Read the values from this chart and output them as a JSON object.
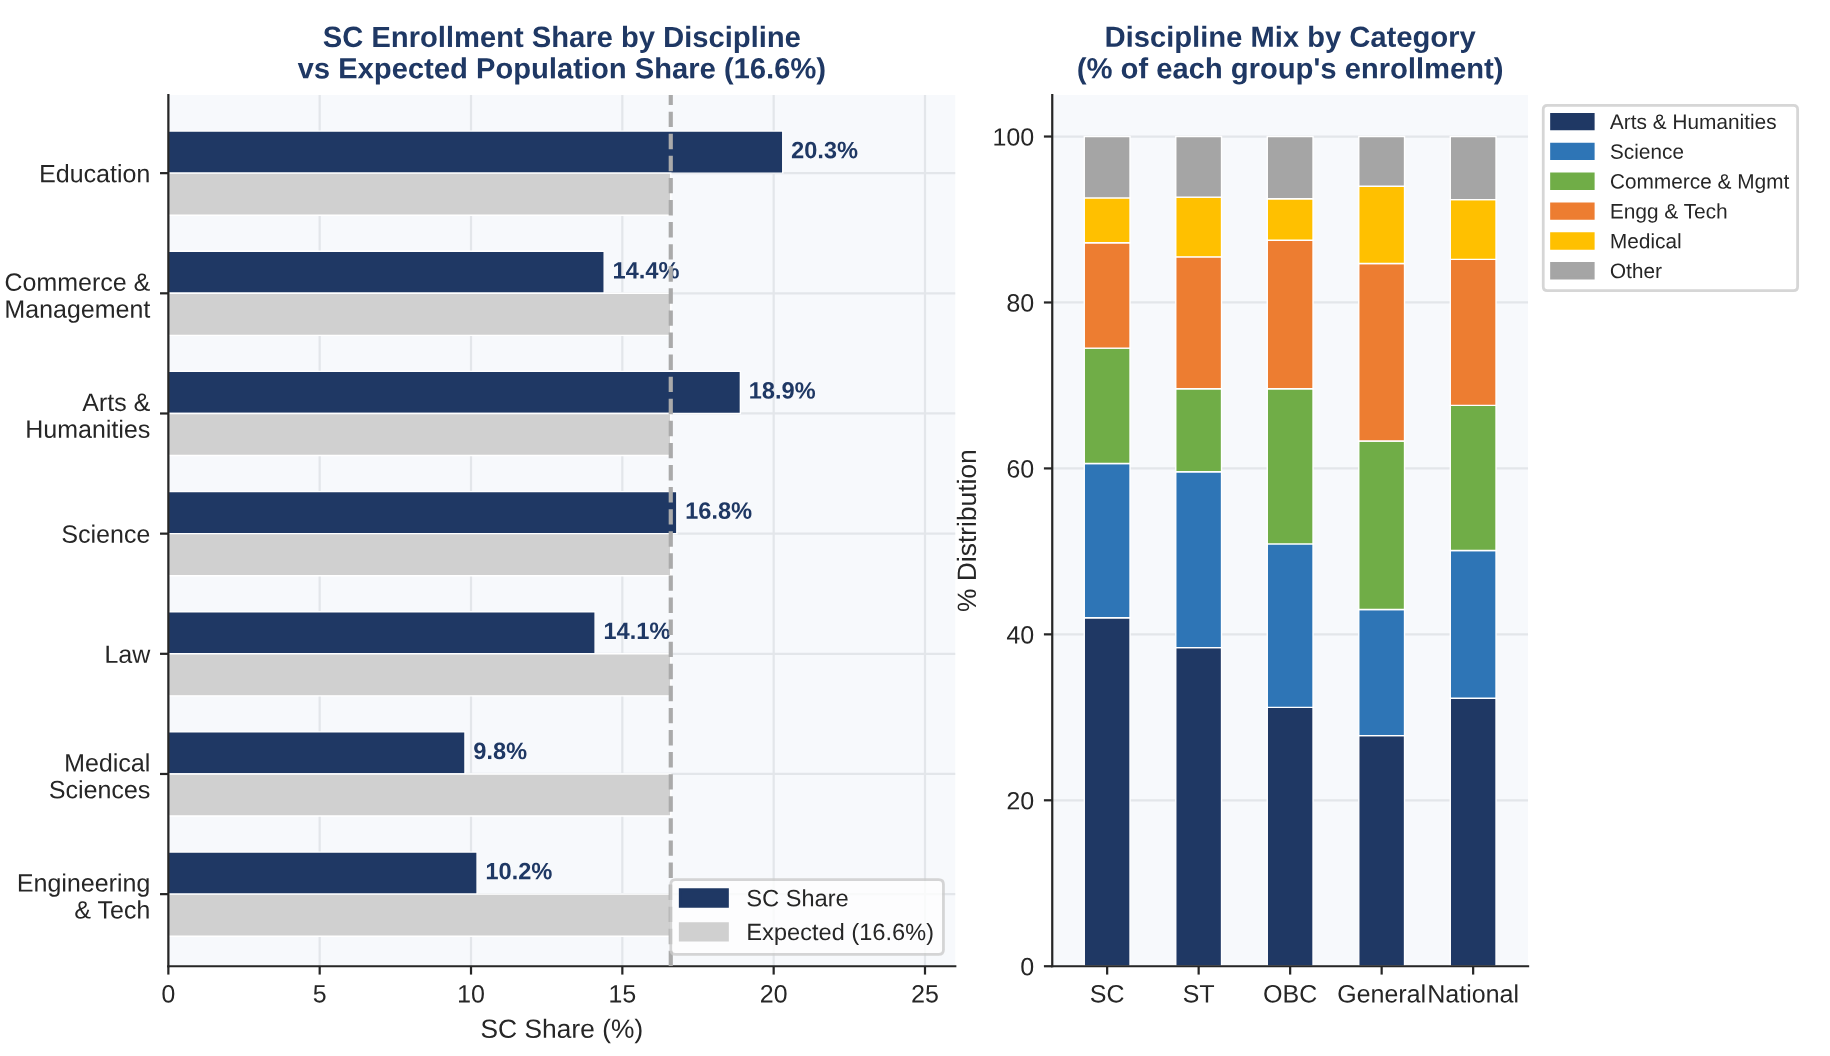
{
  "chart_data": [
    {
      "type": "bar",
      "orientation": "horizontal",
      "title": "SC Enrollment Share by Discipline\nvs Expected Population Share (16.6%)",
      "xlabel": "SC Share (%)",
      "categories": [
        "Education",
        "Commerce &\nManagement",
        "Arts &\nHumanities",
        "Science",
        "Law",
        "Medical\nSciences",
        "Engineering\n& Tech"
      ],
      "series": [
        {
          "name": "SC Share",
          "color": "#1f3864",
          "values": [
            20.3,
            14.4,
            18.9,
            16.8,
            14.1,
            9.8,
            10.2
          ],
          "value_labels": [
            "20.3%",
            "14.4%",
            "18.9%",
            "16.8%",
            "14.1%",
            "9.8%",
            "10.2%"
          ]
        },
        {
          "name": "Expected (16.6%)",
          "color": "#d0d0d0",
          "values": [
            16.6,
            16.6,
            16.6,
            16.6,
            16.6,
            16.6,
            16.6
          ]
        }
      ],
      "xlim": [
        0,
        26
      ],
      "xticks": [
        0,
        5,
        10,
        15,
        20,
        25
      ],
      "ref_lines": [
        {
          "axis": "x",
          "value": 16.6,
          "color": "#aaaaaa",
          "line_style": "dashed"
        }
      ],
      "grid": true,
      "legend": "bottom right"
    },
    {
      "type": "bar",
      "stacked": true,
      "title": "Discipline Mix by Category\n(% of each group's enrollment)",
      "ylabel": "% Distribution",
      "categories": [
        "SC",
        "ST",
        "OBC",
        "General",
        "National"
      ],
      "series": [
        {
          "name": "Arts & Humanities",
          "color": "#1f3864",
          "values": [
            42.0,
            38.4,
            31.2,
            27.8,
            32.3
          ]
        },
        {
          "name": "Science",
          "color": "#2e75b6",
          "values": [
            18.6,
            21.2,
            19.7,
            15.2,
            17.8
          ]
        },
        {
          "name": "Commerce & Mgmt",
          "color": "#70ad47",
          "values": [
            13.9,
            10.0,
            18.7,
            20.3,
            17.5
          ]
        },
        {
          "name": "Engg & Tech",
          "color": "#ed7d31",
          "values": [
            12.7,
            15.9,
            17.9,
            21.4,
            17.6
          ]
        },
        {
          "name": "Medical",
          "color": "#ffc000",
          "values": [
            5.4,
            7.2,
            5.0,
            9.3,
            7.2
          ]
        },
        {
          "name": "Other",
          "color": "#a5a5a5",
          "values": [
            7.4,
            7.3,
            7.5,
            6.0,
            7.6
          ]
        }
      ],
      "ylim": [
        0,
        105
      ],
      "yticks": [
        0,
        20,
        40,
        60,
        80,
        100
      ],
      "grid": "y",
      "legend": "top right"
    }
  ]
}
